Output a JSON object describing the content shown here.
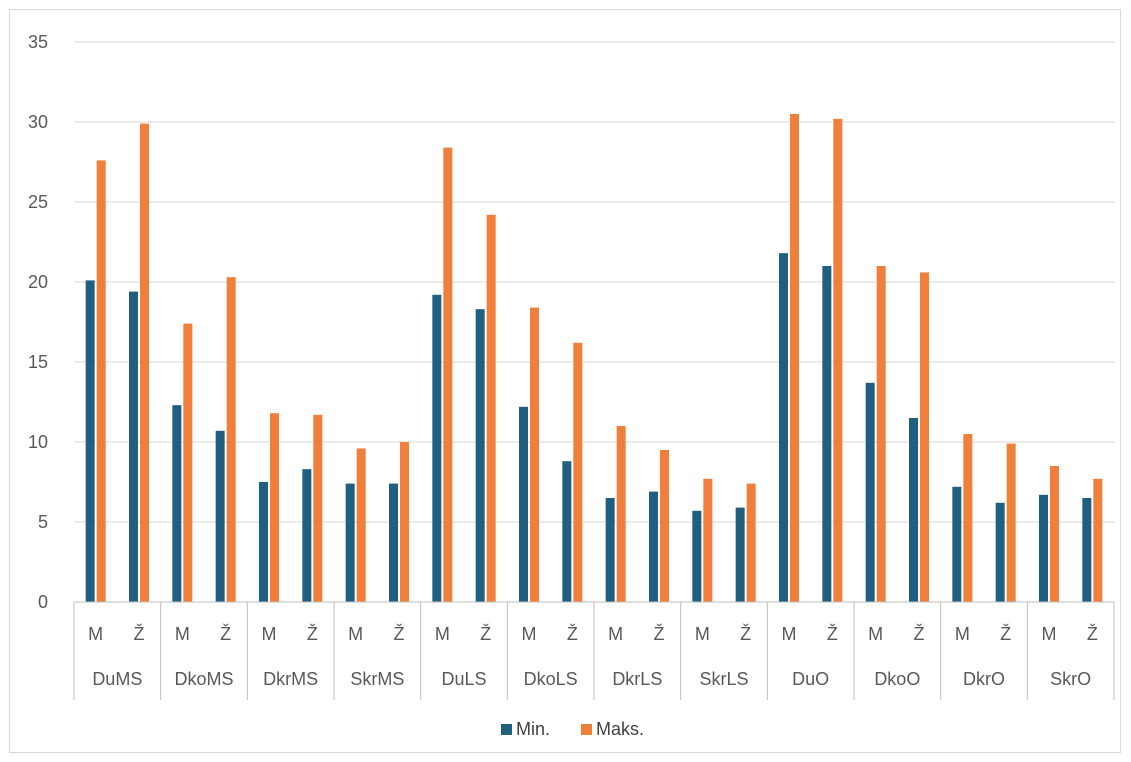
{
  "chart_data": {
    "type": "bar",
    "y_ticks": [
      "0",
      "5",
      "10",
      "15",
      "20",
      "25",
      "30",
      "35"
    ],
    "ylim": [
      0,
      35
    ],
    "grid": true,
    "legend_position": "bottom",
    "groups": [
      "DuMS",
      "DkoMS",
      "DkrMS",
      "SkrMS",
      "DuLS",
      "DkoLS",
      "DkrLS",
      "SkrLS",
      "DuO",
      "DkoO",
      "DkrO",
      "SkrO"
    ],
    "subcategories": [
      "M",
      "Ž"
    ],
    "series": [
      {
        "name": "Min.",
        "color": "#1f5f7f",
        "values": [
          20.1,
          19.4,
          12.3,
          10.7,
          7.5,
          8.3,
          7.4,
          7.4,
          19.2,
          18.3,
          12.2,
          8.8,
          6.5,
          6.9,
          5.7,
          5.9,
          21.8,
          21.0,
          13.7,
          11.5,
          7.2,
          6.2,
          6.7,
          6.5
        ]
      },
      {
        "name": "Maks.",
        "color": "#f07f3c",
        "values": [
          27.6,
          29.9,
          17.4,
          20.3,
          11.8,
          11.7,
          9.6,
          10.0,
          28.4,
          24.2,
          18.4,
          16.2,
          11.0,
          9.5,
          7.7,
          7.4,
          30.5,
          30.2,
          21.0,
          20.6,
          10.5,
          9.9,
          8.5,
          7.7
        ]
      }
    ]
  }
}
